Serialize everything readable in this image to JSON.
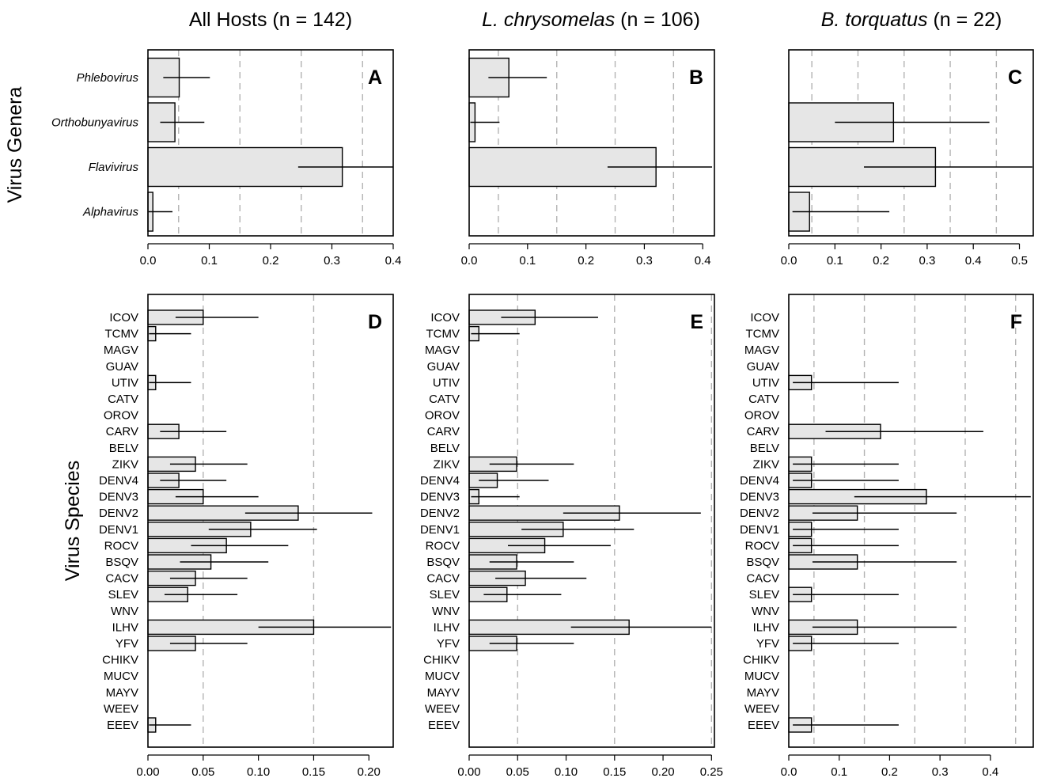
{
  "titles": [
    {
      "name": "All Hosts",
      "italic": false,
      "suffix": "(n = 142)"
    },
    {
      "name": "L. chrysomelas",
      "italic": true,
      "suffix": "(n = 106)"
    },
    {
      "name": "B. torquatus",
      "italic": true,
      "suffix": "(n = 22)"
    }
  ],
  "row_labels": {
    "genera": "Virus Genera",
    "species": "Virus Species"
  },
  "chart_data": [
    {
      "panel": "A",
      "type": "bar",
      "orientation": "horizontal",
      "categories": [
        "Phlebovirus",
        "Orthobunyavirus",
        "Flavivirus",
        "Alphavirus"
      ],
      "values": [
        0.051,
        0.044,
        0.317,
        0.008
      ],
      "ci_low": [
        0.025,
        0.02,
        0.245,
        0.001
      ],
      "ci_high": [
        0.101,
        0.092,
        0.4,
        0.04
      ],
      "xlim": [
        0,
        0.4
      ],
      "ticks": [
        "0.0",
        "0.1",
        "0.2",
        "0.3",
        "0.4"
      ],
      "gridlines": [
        0.05,
        0.15,
        0.25,
        0.35
      ]
    },
    {
      "panel": "B",
      "type": "bar",
      "orientation": "horizontal",
      "categories": [
        "Phlebovirus",
        "Orthobunyavirus",
        "Flavivirus",
        "Alphavirus"
      ],
      "values": [
        0.068,
        0.01,
        0.32,
        0
      ],
      "ci_low": [
        0.033,
        0.002,
        0.237,
        0
      ],
      "ci_high": [
        0.133,
        0.052,
        0.416,
        0
      ],
      "xlim": [
        0,
        0.42
      ],
      "ticks": [
        "0.0",
        "0.1",
        "0.2",
        "0.3",
        "0.4"
      ],
      "gridlines": [
        0.05,
        0.15,
        0.25,
        0.35
      ]
    },
    {
      "panel": "C",
      "type": "bar",
      "orientation": "horizontal",
      "categories": [
        "Phlebovirus",
        "Orthobunyavirus",
        "Flavivirus",
        "Alphavirus"
      ],
      "values": [
        0,
        0.227,
        0.318,
        0.045
      ],
      "ci_low": [
        0,
        0.1,
        0.163,
        0.008
      ],
      "ci_high": [
        0,
        0.435,
        0.528,
        0.218
      ],
      "xlim": [
        0,
        0.53
      ],
      "ticks": [
        "0.0",
        "0.1",
        "0.2",
        "0.3",
        "0.4",
        "0.5"
      ],
      "gridlines": [
        0.05,
        0.15,
        0.25,
        0.35,
        0.45
      ]
    },
    {
      "panel": "D",
      "type": "bar",
      "orientation": "horizontal",
      "categories": [
        "ICOV",
        "TCMV",
        "MAGV",
        "GUAV",
        "UTIV",
        "CATV",
        "OROV",
        "CARV",
        "BELV",
        "ZIKV",
        "DENV4",
        "DENV3",
        "DENV2",
        "DENV1",
        "ROCV",
        "BSQV",
        "CACV",
        "SLEV",
        "WNV",
        "ILHV",
        "YFV",
        "CHIKV",
        "MUCV",
        "MAYV",
        "WEEV",
        "EEEV"
      ],
      "values": [
        0.05,
        0.007,
        0,
        0,
        0.007,
        0,
        0,
        0.028,
        0,
        0.043,
        0.028,
        0.05,
        0.136,
        0.093,
        0.071,
        0.057,
        0.043,
        0.036,
        0,
        0.15,
        0.043,
        0,
        0,
        0,
        0,
        0.007
      ],
      "ci_low": [
        0.025,
        0.001,
        0,
        0,
        0.001,
        0,
        0,
        0.011,
        0,
        0.02,
        0.011,
        0.025,
        0.088,
        0.055,
        0.039,
        0.029,
        0.02,
        0.015,
        0,
        0.1,
        0.02,
        0,
        0,
        0,
        0,
        0.001
      ],
      "ci_high": [
        0.1,
        0.039,
        0,
        0,
        0.039,
        0,
        0,
        0.071,
        0,
        0.09,
        0.071,
        0.1,
        0.203,
        0.153,
        0.127,
        0.109,
        0.09,
        0.081,
        0,
        0.22,
        0.09,
        0,
        0,
        0,
        0,
        0.039
      ],
      "xlim": [
        0,
        0.222
      ],
      "ticks": [
        "0.00",
        "0.05",
        "0.10",
        "0.15",
        "0.20"
      ],
      "gridlines": [
        0.05,
        0.15
      ]
    },
    {
      "panel": "E",
      "type": "bar",
      "orientation": "horizontal",
      "categories": [
        "ICOV",
        "TCMV",
        "MAGV",
        "GUAV",
        "UTIV",
        "CATV",
        "OROV",
        "CARV",
        "BELV",
        "ZIKV",
        "DENV4",
        "DENV3",
        "DENV2",
        "DENV1",
        "ROCV",
        "BSQV",
        "CACV",
        "SLEV",
        "WNV",
        "ILHV",
        "YFV",
        "CHIKV",
        "MUCV",
        "MAYV",
        "WEEV",
        "EEEV"
      ],
      "values": [
        0.068,
        0.01,
        0,
        0,
        0,
        0,
        0,
        0,
        0,
        0.049,
        0.029,
        0.01,
        0.155,
        0.097,
        0.078,
        0.049,
        0.058,
        0.039,
        0,
        0.165,
        0.049,
        0,
        0,
        0,
        0,
        0
      ],
      "ci_low": [
        0.033,
        0.002,
        0,
        0,
        0,
        0,
        0,
        0,
        0,
        0.021,
        0.01,
        0.002,
        0.097,
        0.054,
        0.04,
        0.021,
        0.027,
        0.015,
        0,
        0.105,
        0.021,
        0,
        0,
        0,
        0,
        0
      ],
      "ci_high": [
        0.133,
        0.052,
        0,
        0,
        0,
        0,
        0,
        0,
        0,
        0.108,
        0.082,
        0.052,
        0.239,
        0.17,
        0.146,
        0.108,
        0.121,
        0.095,
        0,
        0.25,
        0.108,
        0,
        0,
        0,
        0,
        0
      ],
      "xlim": [
        0,
        0.253
      ],
      "ticks": [
        "0.00",
        "0.05",
        "0.10",
        "0.15",
        "0.20",
        "0.25"
      ],
      "gridlines": [
        0.05,
        0.15,
        0.25
      ]
    },
    {
      "panel": "F",
      "type": "bar",
      "orientation": "horizontal",
      "categories": [
        "ICOV",
        "TCMV",
        "MAGV",
        "GUAV",
        "UTIV",
        "CATV",
        "OROV",
        "CARV",
        "BELV",
        "ZIKV",
        "DENV4",
        "DENV3",
        "DENV2",
        "DENV1",
        "ROCV",
        "BSQV",
        "CACV",
        "SLEV",
        "WNV",
        "ILHV",
        "YFV",
        "CHIKV",
        "MUCV",
        "MAYV",
        "WEEV",
        "EEEV"
      ],
      "values": [
        0,
        0,
        0,
        0,
        0.045,
        0,
        0,
        0.182,
        0,
        0.045,
        0.045,
        0.273,
        0.136,
        0.045,
        0.045,
        0.136,
        0,
        0.045,
        0,
        0.136,
        0.045,
        0,
        0,
        0,
        0,
        0.045
      ],
      "ci_low": [
        0,
        0,
        0,
        0,
        0.008,
        0,
        0,
        0.073,
        0,
        0.008,
        0.008,
        0.13,
        0.047,
        0.008,
        0.008,
        0.047,
        0,
        0.008,
        0,
        0.047,
        0.008,
        0,
        0,
        0,
        0,
        0.008
      ],
      "ci_high": [
        0,
        0,
        0,
        0,
        0.218,
        0,
        0,
        0.386,
        0,
        0.218,
        0.218,
        0.48,
        0.333,
        0.218,
        0.218,
        0.333,
        0,
        0.218,
        0,
        0.333,
        0.218,
        0,
        0,
        0,
        0,
        0.218
      ],
      "xlim": [
        0,
        0.485
      ],
      "ticks": [
        "0.0",
        "0.1",
        "0.2",
        "0.3",
        "0.4"
      ],
      "gridlines": [
        0.05,
        0.15,
        0.25,
        0.35,
        0.45
      ]
    }
  ]
}
